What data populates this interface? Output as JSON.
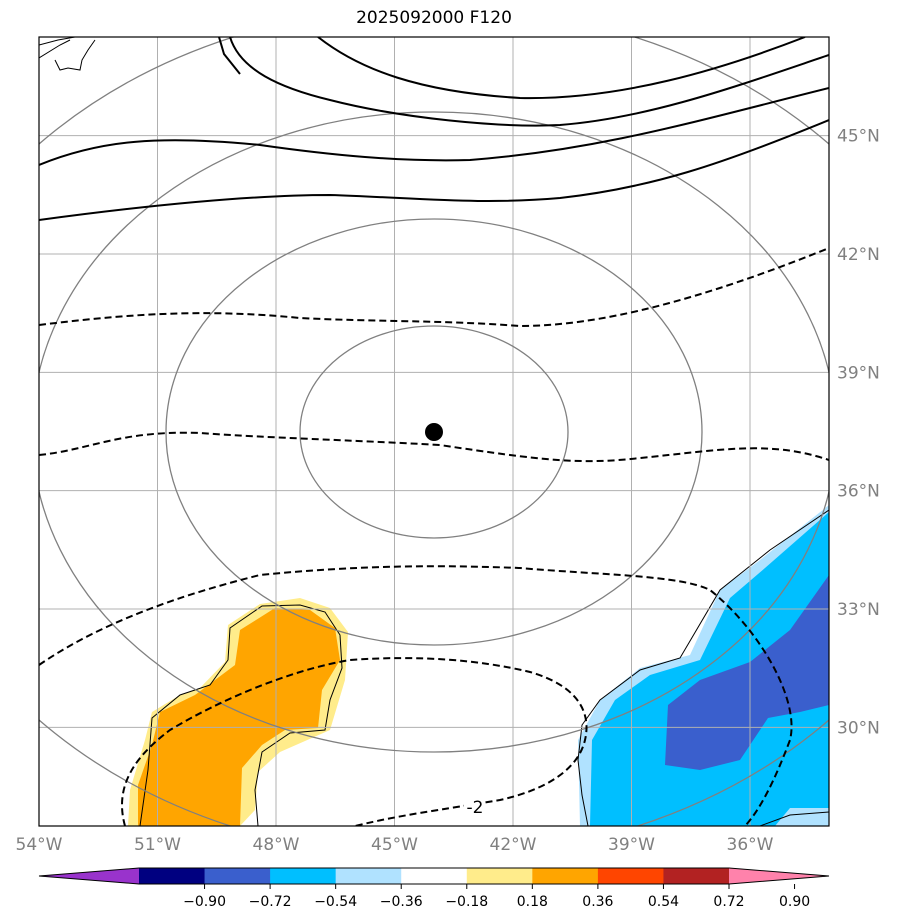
{
  "title": "2025092000 F120",
  "map": {
    "lon_ticks": [
      {
        "label": "54°W",
        "value": -54
      },
      {
        "label": "51°W",
        "value": -51
      },
      {
        "label": "48°W",
        "value": -48
      },
      {
        "label": "45°W",
        "value": -45
      },
      {
        "label": "42°W",
        "value": -42
      },
      {
        "label": "39°W",
        "value": -39
      },
      {
        "label": "36°W",
        "value": -36
      }
    ],
    "lat_ticks": [
      {
        "label": "45°N",
        "value": 45
      },
      {
        "label": "42°N",
        "value": 42
      },
      {
        "label": "39°N",
        "value": 39
      },
      {
        "label": "36°N",
        "value": 36
      },
      {
        "label": "33°N",
        "value": 33
      },
      {
        "label": "30°N",
        "value": 30
      }
    ],
    "extent": {
      "lon_min": -54,
      "lon_max": -34,
      "lat_min": 27.5,
      "lat_max": 47.5
    },
    "center_marker": {
      "lon": -44,
      "lat": 37.5
    },
    "contour_label": "-2",
    "colors": {
      "tick_label": "#808080",
      "grid": "#b0b0b0",
      "range_rings": "#808080",
      "contours": "#000000"
    }
  },
  "colorbar": {
    "tick_labels": [
      "−0.90",
      "−0.72",
      "−0.54",
      "−0.36",
      "−0.18",
      "0.18",
      "0.36",
      "0.54",
      "0.72",
      "0.90"
    ],
    "colors": [
      "#9933cc",
      "#000080",
      "#3a5fcd",
      "#00bfff",
      "#b0e2ff",
      "#ffffff",
      "#ffec8b",
      "#ffa500",
      "#ff4500",
      "#b22222",
      "#ff82ab"
    ]
  }
}
